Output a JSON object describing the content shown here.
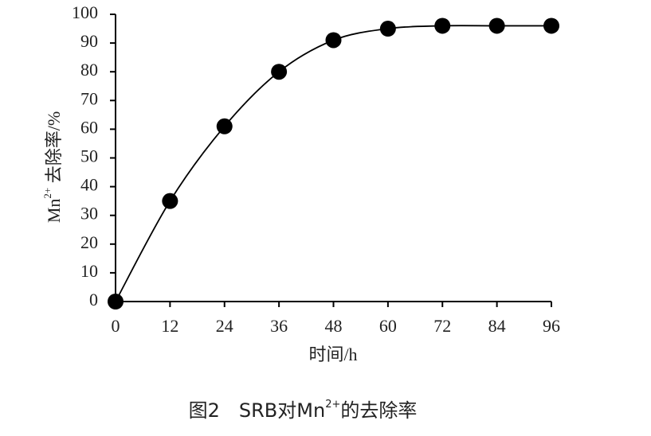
{
  "chart_data": {
    "type": "line",
    "x": [
      0,
      12,
      24,
      36,
      48,
      60,
      72,
      84,
      96
    ],
    "series": [
      {
        "color": "#000000",
        "values": [
          0,
          35,
          61,
          80,
          91,
          95,
          96,
          96,
          96
        ]
      }
    ],
    "xlim": [
      0,
      96
    ],
    "xticks": [
      0,
      12,
      24,
      36,
      48,
      60,
      72,
      84,
      96
    ],
    "ylim": [
      0,
      100
    ],
    "yticks": [
      0,
      10,
      20,
      30,
      40,
      50,
      60,
      70,
      80,
      90,
      100
    ],
    "xlabel": "时间/h",
    "ylabel": {
      "base": "Mn",
      "sup": "2+",
      "rest": " 去除率/%"
    },
    "caption": {
      "prefix": "图2　SRB对Mn",
      "sup": "2+",
      "suffix": "的去除率"
    },
    "smooth": true,
    "markers": true
  }
}
